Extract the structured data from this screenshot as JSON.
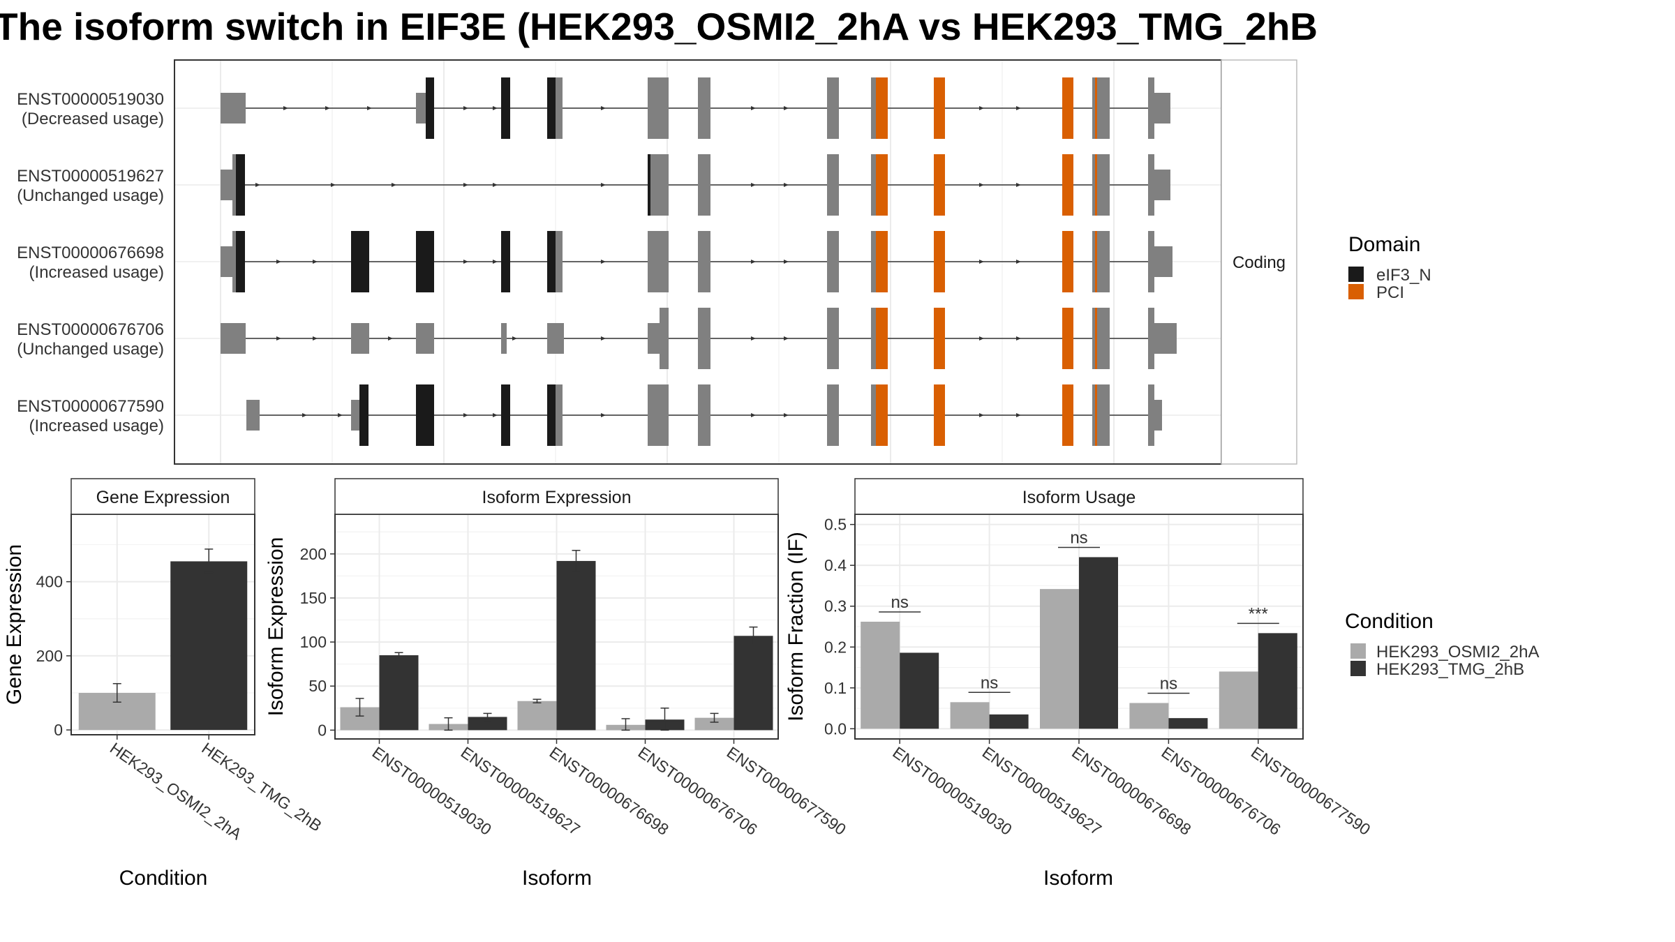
{
  "figure": {
    "title": "The isoform switch in EIF3E (HEK293_OSMI2_2hA vs HEK293_TMG_2hB"
  },
  "transcript_panel": {
    "strip_label": "Coding",
    "isoforms": [
      {
        "id": "ENST00000519030",
        "status": "(Decreased usage)"
      },
      {
        "id": "ENST00000519627",
        "status": "(Unchanged usage)"
      },
      {
        "id": "ENST00000676698",
        "status": "(Increased usage)"
      },
      {
        "id": "ENST00000676706",
        "status": "(Unchanged usage)"
      },
      {
        "id": "ENST00000677590",
        "status": "(Increased usage)"
      }
    ]
  },
  "legends": {
    "domain": {
      "title": "Domain",
      "items": [
        {
          "label": "eIF3_N",
          "color": "#1a1a1a"
        },
        {
          "label": "PCI",
          "color": "#d95f02"
        }
      ]
    },
    "condition": {
      "title": "Condition",
      "items": [
        {
          "label": "HEK293_OSMI2_2hA",
          "color": "#aaaaaa"
        },
        {
          "label": "HEK293_TMG_2hB",
          "color": "#333333"
        }
      ]
    }
  },
  "colors": {
    "utr": "#808080",
    "eIF3_N": "#1a1a1a",
    "PCI": "#d95f02",
    "cond_a": "#aaaaaa",
    "cond_b": "#333333",
    "grid": "#ebebeb",
    "strip_bg": "#ffffff"
  },
  "chart_data": [
    {
      "type": "bar",
      "strip": "Gene Expression",
      "xlabel": "Condition",
      "ylabel": "Gene Expression",
      "categories": [
        "HEK293_OSMI2_2hA",
        "HEK293_TMG_2hB"
      ],
      "values": [
        100,
        455
      ],
      "error": [
        [
          75,
          125
        ],
        [
          425,
          488
        ]
      ],
      "ylim": [
        -13,
        582
      ],
      "yticks": [
        0,
        200,
        400
      ]
    },
    {
      "type": "bar",
      "strip": "Isoform Expression",
      "xlabel": "Isoform",
      "ylabel": "Isoform Expression",
      "categories": [
        "ENST00000519030",
        "ENST00000519627",
        "ENST00000676698",
        "ENST00000676706",
        "ENST00000677590"
      ],
      "series": [
        {
          "name": "HEK293_OSMI2_2hA",
          "values": [
            26,
            7,
            33,
            6,
            14
          ],
          "error": [
            [
              16,
              36
            ],
            [
              0,
              14
            ],
            [
              31,
              35
            ],
            [
              0,
              13
            ],
            [
              9,
              19
            ]
          ]
        },
        {
          "name": "HEK293_TMG_2hB",
          "values": [
            85,
            15,
            192,
            12,
            107
          ],
          "error": [
            [
              82,
              88
            ],
            [
              11,
              19
            ],
            [
              180,
              204
            ],
            [
              0,
              25
            ],
            [
              97,
              117
            ]
          ]
        }
      ],
      "ylim": [
        -10,
        245
      ],
      "yticks": [
        0,
        50,
        100,
        150,
        200
      ]
    },
    {
      "type": "bar",
      "strip": "Isoform Usage",
      "xlabel": "Isoform",
      "ylabel": "Isoform Fraction (IF)",
      "categories": [
        "ENST00000519030",
        "ENST00000519627",
        "ENST00000676698",
        "ENST00000676706",
        "ENST00000677590"
      ],
      "series": [
        {
          "name": "HEK293_OSMI2_2hA",
          "values": [
            0.262,
            0.065,
            0.342,
            0.063,
            0.14
          ]
        },
        {
          "name": "HEK293_TMG_2hB",
          "values": [
            0.186,
            0.035,
            0.42,
            0.026,
            0.234
          ]
        }
      ],
      "significance": [
        "ns",
        "ns",
        "ns",
        "ns",
        "***"
      ],
      "ylim": [
        -0.025,
        0.525
      ],
      "yticks": [
        "0.0",
        "0.1",
        "0.2",
        "0.3",
        "0.4",
        "0.5"
      ]
    }
  ]
}
